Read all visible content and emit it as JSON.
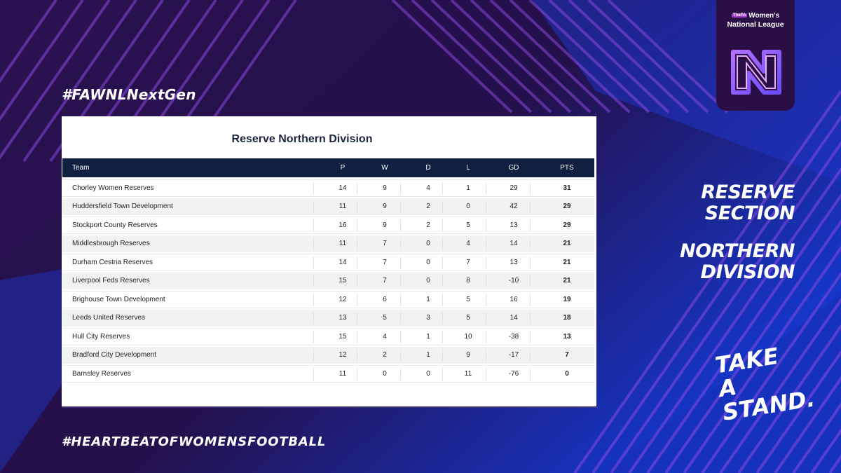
{
  "hashtags": {
    "top": "#FAWNLNextGen",
    "bottom": "#HEARTBEATOFWOMENSFOOTBALL"
  },
  "logo": {
    "badge": "TheFA",
    "line1": "Women's",
    "line2": "National League",
    "mark_icon": "wnl-n-logo-icon"
  },
  "table": {
    "title": "Reserve Northern Division",
    "headers": {
      "team": "Team",
      "p": "P",
      "w": "W",
      "d": "D",
      "l": "L",
      "gd": "GD",
      "pts": "PTS"
    },
    "rows": [
      {
        "team": "Chorley Women Reserves",
        "p": "14",
        "w": "9",
        "d": "4",
        "l": "1",
        "gd": "29",
        "pts": "31"
      },
      {
        "team": "Huddersfield Town Development",
        "p": "11",
        "w": "9",
        "d": "2",
        "l": "0",
        "gd": "42",
        "pts": "29"
      },
      {
        "team": "Stockport County Reserves",
        "p": "16",
        "w": "9",
        "d": "2",
        "l": "5",
        "gd": "13",
        "pts": "29"
      },
      {
        "team": "Middlesbrough Reserves",
        "p": "11",
        "w": "7",
        "d": "0",
        "l": "4",
        "gd": "14",
        "pts": "21"
      },
      {
        "team": "Durham Cestria Reserves",
        "p": "14",
        "w": "7",
        "d": "0",
        "l": "7",
        "gd": "13",
        "pts": "21"
      },
      {
        "team": "Liverpool Feds Reserves",
        "p": "15",
        "w": "7",
        "d": "0",
        "l": "8",
        "gd": "-10",
        "pts": "21"
      },
      {
        "team": "Brighouse Town Development",
        "p": "12",
        "w": "6",
        "d": "1",
        "l": "5",
        "gd": "16",
        "pts": "19"
      },
      {
        "team": "Leeds United Reserves",
        "p": "13",
        "w": "5",
        "d": "3",
        "l": "5",
        "gd": "14",
        "pts": "18"
      },
      {
        "team": "Hull City Reserves",
        "p": "15",
        "w": "4",
        "d": "1",
        "l": "10",
        "gd": "-38",
        "pts": "13"
      },
      {
        "team": "Bradford City Development",
        "p": "12",
        "w": "2",
        "d": "1",
        "l": "9",
        "gd": "-17",
        "pts": "7"
      },
      {
        "team": "Barnsley Reserves",
        "p": "11",
        "w": "0",
        "d": "0",
        "l": "11",
        "gd": "-76",
        "pts": "0"
      }
    ]
  },
  "side": {
    "section_line1": "RESERVE",
    "section_line2": "SECTION",
    "division_line1": "NORTHERN",
    "division_line2": "DIVISION",
    "slogan_line1": "TAKE A",
    "slogan_line2": "STAND."
  },
  "colors": {
    "bg_dark": "#2a1250",
    "bg_blue": "#1a3ae0",
    "stripe": "#7d3fd1",
    "table_header": "#0f2040"
  }
}
